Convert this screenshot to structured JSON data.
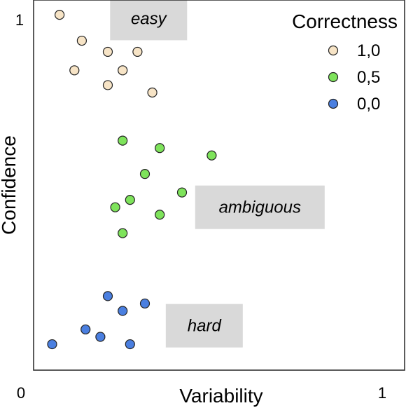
{
  "chart_data": {
    "type": "scatter",
    "title": "",
    "xlabel": "Variability",
    "ylabel": "Confidence",
    "xlim": [
      0,
      1
    ],
    "ylim": [
      0,
      1
    ],
    "xticks": [
      {
        "value": 0,
        "label": "0"
      },
      {
        "value": 1,
        "label": "1"
      }
    ],
    "yticks": [
      {
        "value": 1,
        "label": "1"
      }
    ],
    "grid": false,
    "legend": {
      "title": "Correctness",
      "placement": "top-right"
    },
    "series": [
      {
        "name": "1,0",
        "color": "#f7e4c6",
        "points": [
          {
            "x": 0.07,
            "y": 0.96
          },
          {
            "x": 0.13,
            "y": 0.89
          },
          {
            "x": 0.2,
            "y": 0.86
          },
          {
            "x": 0.28,
            "y": 0.86
          },
          {
            "x": 0.11,
            "y": 0.81
          },
          {
            "x": 0.24,
            "y": 0.81
          },
          {
            "x": 0.2,
            "y": 0.77
          },
          {
            "x": 0.32,
            "y": 0.75
          }
        ]
      },
      {
        "name": "0,5",
        "color": "#7ee35b",
        "points": [
          {
            "x": 0.24,
            "y": 0.62
          },
          {
            "x": 0.34,
            "y": 0.6
          },
          {
            "x": 0.48,
            "y": 0.58
          },
          {
            "x": 0.3,
            "y": 0.53
          },
          {
            "x": 0.4,
            "y": 0.48
          },
          {
            "x": 0.26,
            "y": 0.46
          },
          {
            "x": 0.22,
            "y": 0.44
          },
          {
            "x": 0.34,
            "y": 0.42
          },
          {
            "x": 0.24,
            "y": 0.37
          }
        ]
      },
      {
        "name": "0,0",
        "color": "#4a7fe0",
        "points": [
          {
            "x": 0.2,
            "y": 0.2
          },
          {
            "x": 0.3,
            "y": 0.18
          },
          {
            "x": 0.24,
            "y": 0.16
          },
          {
            "x": 0.14,
            "y": 0.11
          },
          {
            "x": 0.18,
            "y": 0.09
          },
          {
            "x": 0.05,
            "y": 0.07
          },
          {
            "x": 0.26,
            "y": 0.07
          }
        ]
      }
    ],
    "annotations": [
      {
        "text": "easy",
        "x": 0.31,
        "y": 0.95
      },
      {
        "text": "ambiguous",
        "x": 0.61,
        "y": 0.44
      },
      {
        "text": "hard",
        "x": 0.46,
        "y": 0.12
      }
    ]
  }
}
